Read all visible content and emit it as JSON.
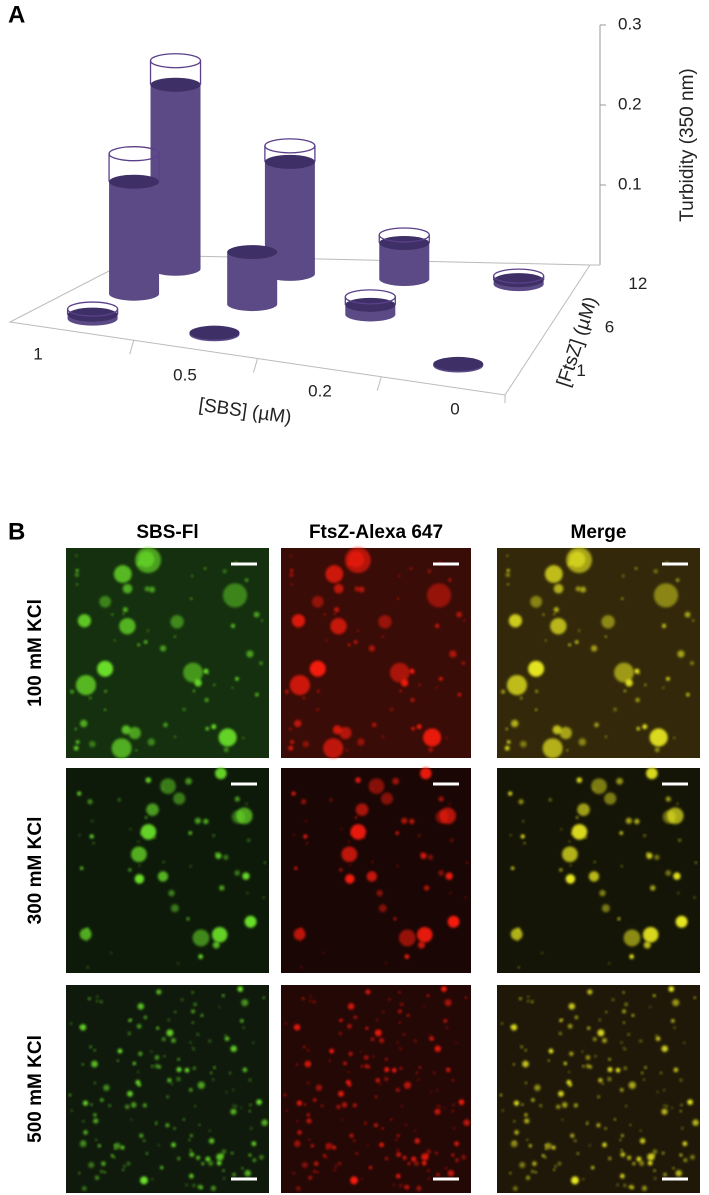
{
  "panel_a": {
    "label": "A"
  },
  "chart_data": {
    "type": "bar3d",
    "x_label": "[SBS] (µM)",
    "depth_label": "[FtsZ] (µM)",
    "z_label": "Turbidity (350 nm)",
    "categories": [
      "1",
      "0.5",
      "0.2",
      "0"
    ],
    "depth_categories": [
      "1",
      "6",
      "12"
    ],
    "zlim": [
      0,
      0.3
    ],
    "zticks": [
      0.1,
      0.2,
      0.3
    ],
    "color": "#5b4a86",
    "values": [
      [
        0.005,
        0.002,
        null,
        0.002
      ],
      [
        0.14,
        0.065,
        0.012,
        null
      ],
      [
        0.23,
        0.14,
        0.045,
        0.005
      ]
    ],
    "upper": [
      [
        0.012,
        null,
        null,
        null
      ],
      [
        0.175,
        null,
        0.022,
        null
      ],
      [
        0.26,
        0.16,
        0.055,
        0.01
      ]
    ]
  },
  "panel_b": {
    "label": "B",
    "columns": [
      "SBS-Fl",
      "FtsZ-Alexa 647",
      "Merge"
    ],
    "rows": [
      "100 mM KCl",
      "300 mM KCl",
      "500 mM KCl"
    ]
  }
}
